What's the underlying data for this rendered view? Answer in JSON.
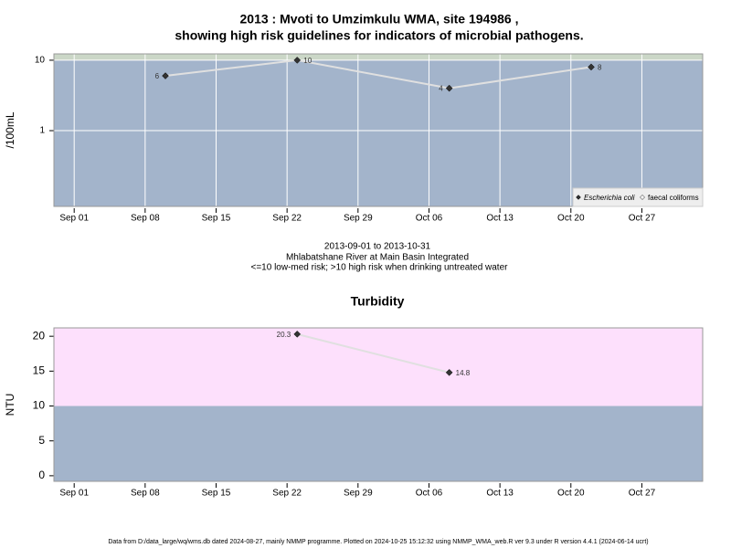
{
  "chart_data": [
    {
      "type": "line",
      "title": "2013 : Mvoti to Umzimkulu WMA, site 194986 ,",
      "subtitle": "showing high risk guidelines for indicators of microbial pathogens.",
      "ylabel": "/100mL",
      "log_scale": true,
      "ylim": [
        0.084,
        12.3
      ],
      "yticks": [
        1,
        10
      ],
      "xlim": [
        "Aug 30",
        "Nov 02"
      ],
      "xticks": [
        "Sep 01",
        "Sep 08",
        "Sep 15",
        "Sep 22",
        "Sep 29",
        "Oct 06",
        "Oct 13",
        "Oct 20",
        "Oct 27"
      ],
      "x": [
        "Sep 10",
        "Sep 23",
        "Oct 08",
        "Oct 22"
      ],
      "series": [
        {
          "name": "Escherichia coli",
          "color": "#333333",
          "marker": "diamond",
          "values": [
            6,
            10,
            4,
            8
          ]
        },
        {
          "name": "faecal coliforms",
          "color": "#ffffff",
          "marker": "diamond-open",
          "values": [
            null,
            null,
            null,
            null
          ]
        }
      ],
      "threshold": 10,
      "band_colors": [
        "#a3b4cb",
        "#cbd7c7"
      ],
      "grid": true,
      "legend": "lower right",
      "notes": [
        "2013-09-01 to 2013-10-31",
        "Mhlabatshane River at Main Basin Integrated",
        "<=10 low-med risk; >10 high risk when drinking untreated water"
      ]
    },
    {
      "type": "line",
      "title": "Turbidity",
      "ylabel": "NTU",
      "log_scale": false,
      "ylim": [
        -0.8,
        21.2
      ],
      "yticks": [
        0,
        5,
        10,
        15,
        20
      ],
      "xlim": [
        "Aug 30",
        "Nov 02"
      ],
      "xticks": [
        "Sep 01",
        "Sep 08",
        "Sep 15",
        "Sep 22",
        "Sep 29",
        "Oct 06",
        "Oct 13",
        "Oct 20",
        "Oct 27"
      ],
      "x": [
        "Sep 23",
        "Oct 08"
      ],
      "series": [
        {
          "name": "Turbidity",
          "color": "#333333",
          "marker": "diamond",
          "values": [
            20.3,
            14.8
          ]
        }
      ],
      "threshold": 10,
      "band_colors": [
        "#a3b4cb",
        "#fde0fc"
      ],
      "grid": false
    }
  ],
  "footer": "Data from D:/data_large/wq/wms.db dated 2024-08-27, mainly NMMP programme. Plotted on 2024-10-25 15:12:32 using NMMP_WMA_web.R ver 9.3 under R version 4.4.1 (2024-06-14 ucrt)"
}
